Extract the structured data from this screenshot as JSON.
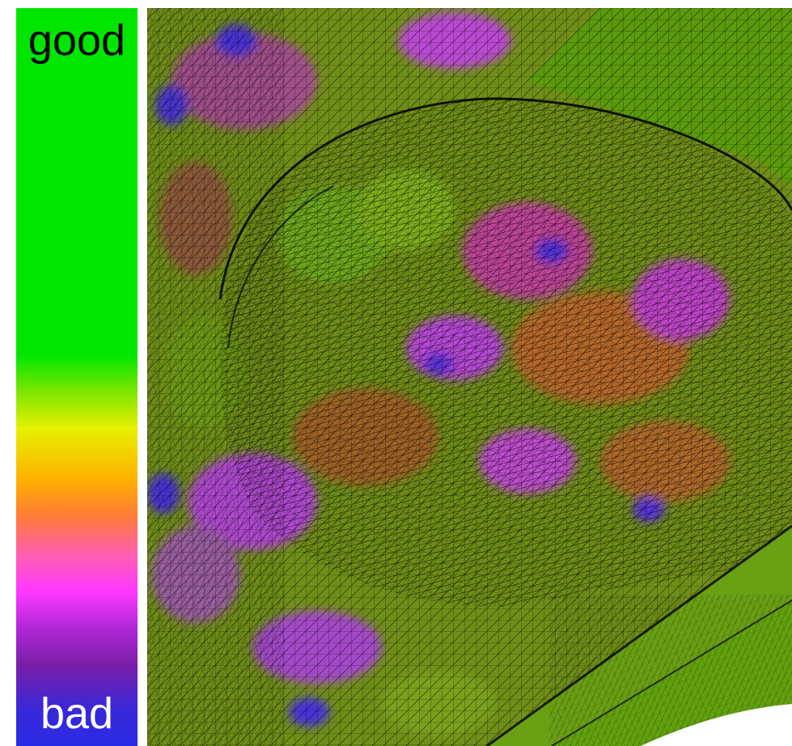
{
  "legend": {
    "top_label": "good",
    "bottom_label": "bad",
    "scale_colors": [
      "#00e600",
      "#7ee600",
      "#e6f000",
      "#ffb000",
      "#ff7a3a",
      "#ff38ff",
      "#b028d8",
      "#7a1ea8",
      "#2a2ae6"
    ]
  },
  "mesh_view": {
    "description_colors": {
      "good": "#4fb400",
      "mid": "#b08a2a",
      "poor": "#b83bd8",
      "worst": "#4a2ae6"
    }
  }
}
